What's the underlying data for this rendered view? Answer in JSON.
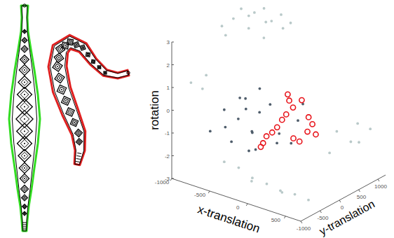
{
  "chart_data": {
    "type": "scatter3d",
    "x_label": "x-translation",
    "y_label": "y-translation",
    "z_label": "rotation",
    "xlim": [
      -1000,
      700
    ],
    "xticks": [
      -1000,
      -500,
      0,
      500
    ],
    "ylim": [
      -1000,
      1200
    ],
    "yticks": [
      -1000,
      -500,
      0,
      500,
      1000
    ],
    "zlim": [
      -3,
      3
    ],
    "zticks": [
      -3,
      -2,
      -1,
      0,
      1,
      2,
      3
    ],
    "series": [
      {
        "color": "#b9c9c9",
        "marker": "dot",
        "x": [
          -1000,
          -900,
          -800,
          -700,
          -600,
          -500,
          -850,
          -650,
          -550,
          -750,
          -1000,
          -900,
          -950,
          -450,
          -220,
          -40,
          150,
          -410,
          330,
          520,
          700,
          -100,
          250,
          260,
          445,
          165,
          535,
          600,
          400,
          -950,
          -900,
          -800
        ],
        "y": [
          800,
          800,
          750,
          850,
          800,
          900,
          700,
          700,
          950,
          900,
          300,
          200,
          500,
          1000,
          -800,
          -800,
          -800,
          -800,
          -800,
          -800,
          -800,
          -700,
          -600,
          800,
          800,
          800,
          800,
          1000,
          1100,
          -600,
          -400,
          -500
        ],
        "z": [
          2.8,
          2.6,
          2.9,
          2.5,
          2.7,
          2.4,
          2.2,
          2.0,
          2.9,
          3.0,
          2.5,
          2.3,
          2.7,
          2.6,
          -1.85,
          -2.1,
          -2.15,
          -1.8,
          -2.25,
          -2.2,
          -2.25,
          -2.4,
          -2.6,
          -1.2,
          -1.45,
          -2.25,
          -0.55,
          -0.9,
          -1.8,
          0.9,
          0.5,
          1.3
        ]
      },
      {
        "color": "#4f5d6b",
        "marker": "dot",
        "x": [
          -435,
          -530,
          -345,
          -620,
          -250,
          -110,
          -715,
          -390,
          -20,
          -900,
          155,
          65,
          220,
          -480,
          -300,
          -560,
          -200,
          -650,
          -400,
          60
        ],
        "y": [
          -200,
          -200,
          -200,
          -200,
          -200,
          -200,
          -200,
          -200,
          -200,
          -200,
          0,
          0,
          0,
          -100,
          -300,
          -100,
          -400,
          -300,
          100,
          -300
        ],
        "z": [
          0.4,
          -0.6,
          -1.0,
          -1.7,
          0,
          0.5,
          -0.4,
          -1.85,
          -1.1,
          -1.55,
          -0.1,
          -1.2,
          0.7,
          -0.2,
          -0.8,
          0.2,
          -1.4,
          -1.0,
          0.6,
          -0.5
        ]
      },
      {
        "color": "#e8141b",
        "marker": "circle_open",
        "x": [
          20,
          40,
          90,
          0,
          -55,
          -120,
          -185,
          -260,
          -305,
          -335,
          295,
          345,
          390,
          280,
          95,
          175,
          205
        ],
        "y": [
          0,
          0,
          0,
          0,
          0,
          0,
          0,
          0,
          0,
          0,
          0,
          0,
          0,
          0,
          0,
          0,
          0
        ],
        "z": [
          0.9,
          0.65,
          0.4,
          0,
          -0.3,
          -0.7,
          -1.0,
          -1.25,
          -1.6,
          -1.8,
          0.2,
          -0.05,
          -0.45,
          -0.45,
          -0.95,
          -1.0,
          0.85
        ]
      }
    ]
  }
}
